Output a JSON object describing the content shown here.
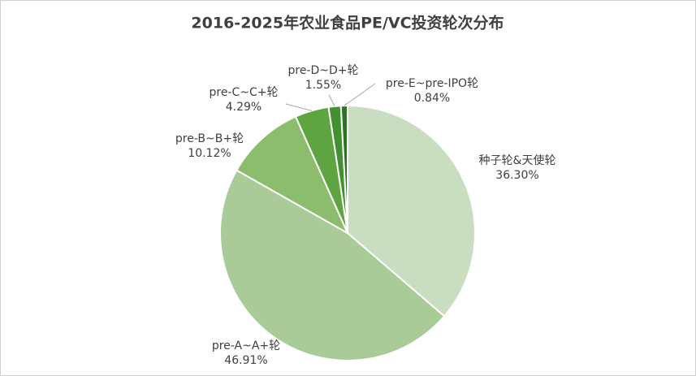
{
  "chart_data": {
    "type": "pie",
    "title": "2016-2025年农业食品PE/VC投资轮次分布",
    "categories": [
      "种子轮&天使轮",
      "pre-A~A+轮",
      "pre-B~B+轮",
      "pre-C~C+轮",
      "pre-D~D+轮",
      "pre-E~pre-IPO轮"
    ],
    "values": [
      36.3,
      46.91,
      10.12,
      4.29,
      1.55,
      0.84
    ],
    "value_labels": [
      "36.30%",
      "46.91%",
      "10.12%",
      "4.29%",
      "1.55%",
      "0.84%"
    ],
    "colors": [
      "#c9ddc0",
      "#a9cb98",
      "#8bbd6d",
      "#5ea541",
      "#43902f",
      "#2c7324"
    ]
  }
}
